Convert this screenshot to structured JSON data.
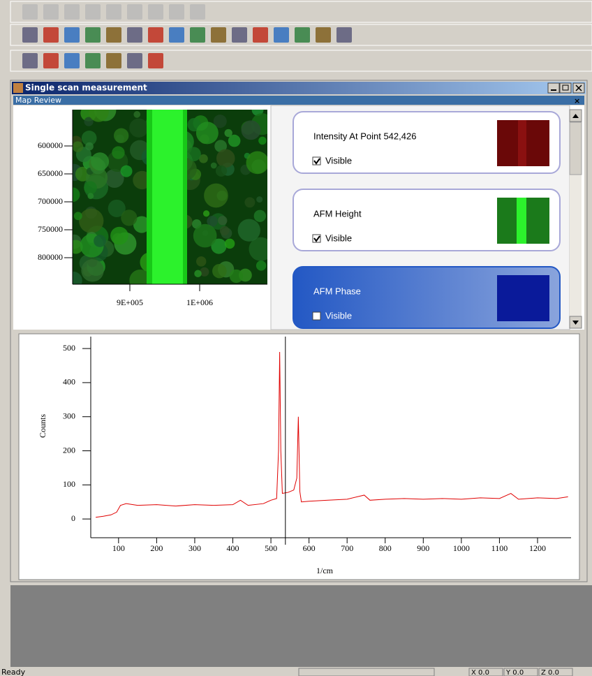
{
  "window": {
    "title": "Single scan measurement"
  },
  "map_review": {
    "title": "Map Review",
    "map": {
      "xlim": [
        818000,
        1097000
      ],
      "ylim": [
        535000,
        847500
      ],
      "xticks": [
        {
          "value": 900000,
          "label": "9E+005"
        },
        {
          "value": 1000000,
          "label": "1E+006"
        }
      ],
      "yticks": [
        600000,
        650000,
        700000,
        750000,
        800000
      ]
    },
    "layers": [
      {
        "name": "Intensity At Point 542,426",
        "visible_label": "Visible",
        "checked": true,
        "selected": false,
        "color": "#6a0808"
      },
      {
        "name": "AFM Height",
        "visible_label": "Visible",
        "checked": true,
        "selected": false,
        "color": "#1b7a1b"
      },
      {
        "name": "AFM Phase",
        "visible_label": "Visible",
        "checked": false,
        "selected": true,
        "color": "#0a1a9a"
      }
    ]
  },
  "chart_data": {
    "type": "line",
    "x_label": "1/cm",
    "y_label": "Counts",
    "color": "#e00000",
    "xlim": [
      27,
      1288
    ],
    "ylim": [
      -55,
      535
    ],
    "xticks": [
      100,
      200,
      300,
      400,
      500,
      600,
      700,
      800,
      900,
      1000,
      1100,
      1200
    ],
    "yticks": [
      0,
      100,
      200,
      300,
      400,
      500
    ],
    "cursor_x": 538,
    "x": [
      40,
      60,
      80,
      95,
      105,
      120,
      150,
      200,
      250,
      300,
      350,
      400,
      420,
      440,
      480,
      500,
      515,
      520,
      523,
      526,
      530,
      545,
      560,
      568,
      572,
      576,
      580,
      600,
      650,
      700,
      745,
      760,
      800,
      850,
      900,
      950,
      1000,
      1050,
      1100,
      1130,
      1150,
      1200,
      1250,
      1280
    ],
    "values": [
      5,
      8,
      12,
      20,
      40,
      45,
      40,
      42,
      38,
      42,
      40,
      42,
      55,
      40,
      45,
      55,
      60,
      200,
      490,
      200,
      75,
      78,
      85,
      120,
      300,
      80,
      50,
      52,
      55,
      58,
      70,
      55,
      58,
      60,
      58,
      60,
      58,
      62,
      60,
      75,
      58,
      62,
      60,
      65
    ]
  },
  "status_bar": {
    "text": "Ready",
    "fields": [
      "X 0.0",
      "Y 0.0",
      "Z 0.0"
    ]
  }
}
